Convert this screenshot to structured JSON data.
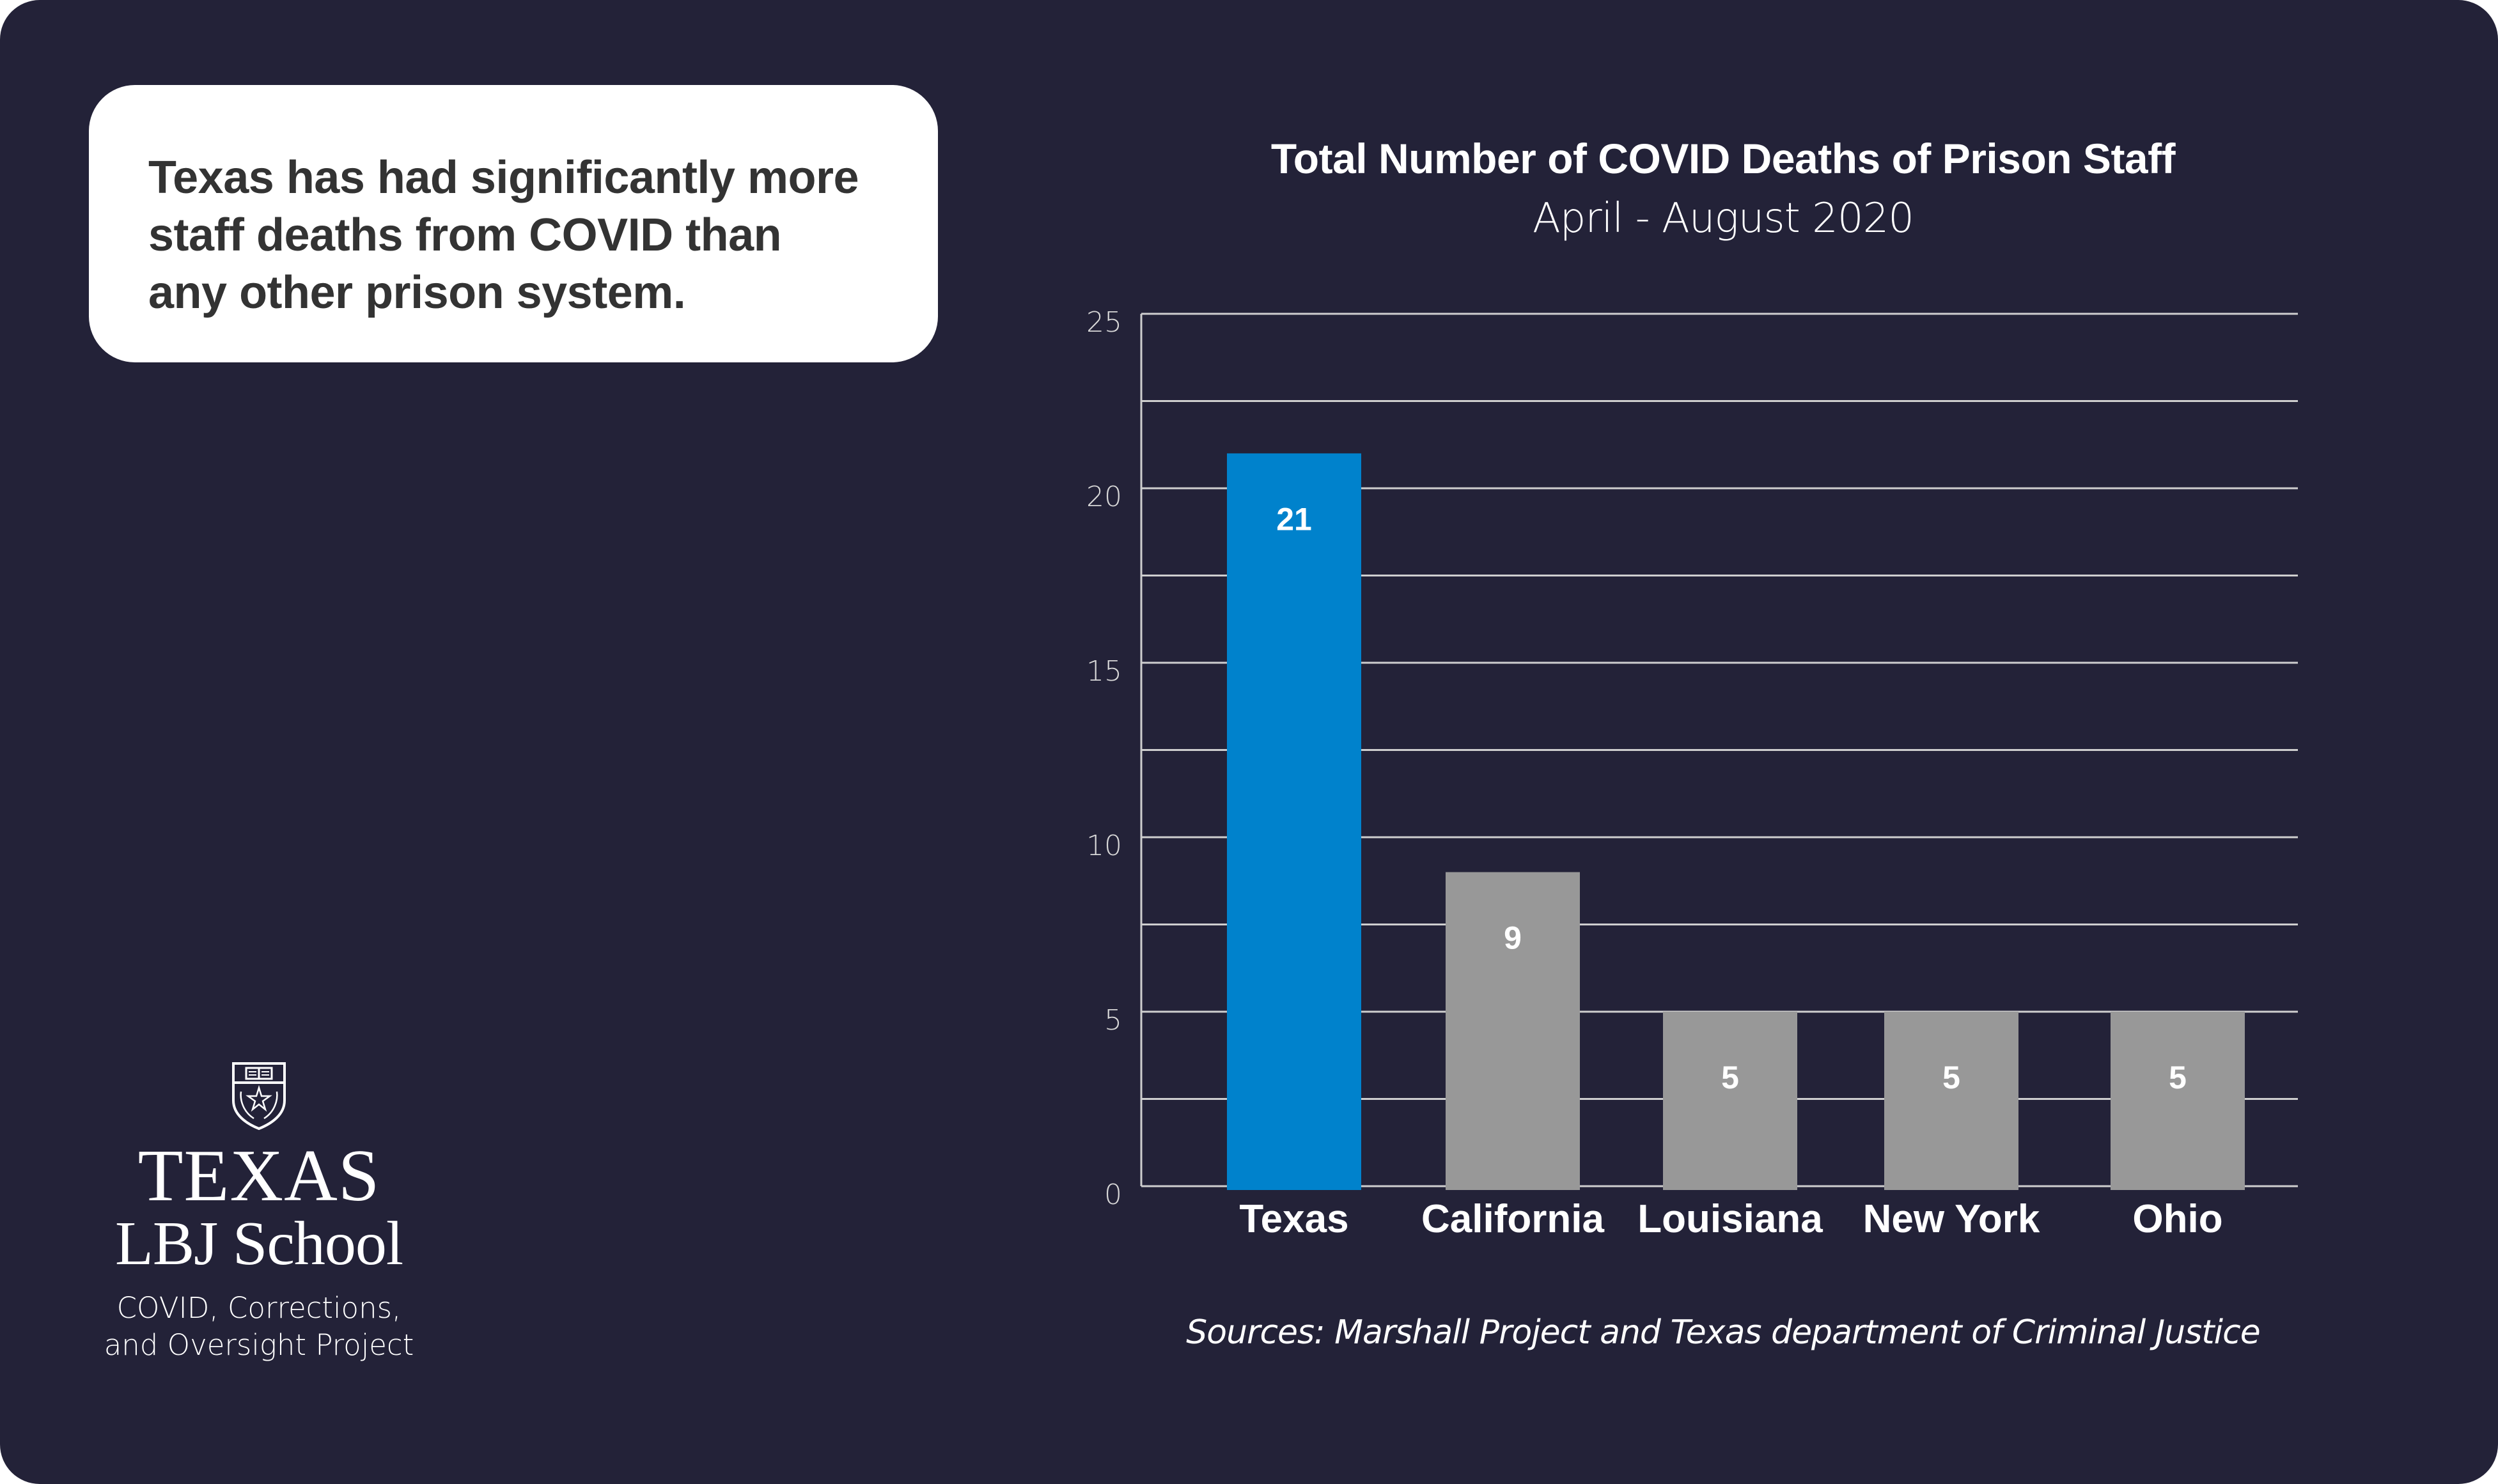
{
  "callout": {
    "text": "Texas has had significantly more\nstaff deaths from COVID than\nany other prison system."
  },
  "logo": {
    "icon": "ut-shield-icon",
    "line1": "TEXAS",
    "line2": "LBJ School",
    "project_line1": "COVID, Corrections,",
    "project_line2": "and Oversight Project"
  },
  "colors": {
    "background": "#232238",
    "highlight_bar": "#0082CC",
    "other_bar": "#989898",
    "grid": "#CFCFCF",
    "text": "#FFFFFF",
    "callout_text": "#333333"
  },
  "chart_data": {
    "type": "bar",
    "title": "Total Number of COVID Deaths of Prison Staff",
    "subtitle": "April - August 2020",
    "categories": [
      "Texas",
      "California",
      "Louisiana",
      "New York",
      "Ohio"
    ],
    "values": [
      21,
      9,
      5,
      5,
      5
    ],
    "data_labels": [
      "21",
      "9",
      "5",
      "5",
      "5"
    ],
    "highlight": [
      "Texas"
    ],
    "xlabel": "",
    "ylabel": "",
    "ylim": [
      0,
      25
    ],
    "yticks": [
      0,
      5,
      10,
      15,
      20,
      25
    ],
    "gridlines": [
      0,
      2.5,
      5,
      7.5,
      10,
      12.5,
      15,
      17.5,
      20,
      22.5,
      25
    ],
    "grid": true,
    "legend": "none",
    "source": "Sources: Marshall Project and Texas department of Criminal Justice"
  }
}
